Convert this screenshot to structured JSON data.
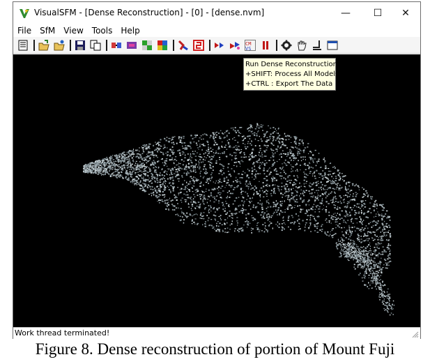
{
  "window": {
    "title": "VisualSFM - [Dense Reconstruction] - [0] - [dense.nvm]",
    "minimize_glyph": "—",
    "maximize_glyph": "☐",
    "close_glyph": "✕"
  },
  "menu": [
    "File",
    "SfM",
    "View",
    "Tools",
    "Help"
  ],
  "toolbar_icons": [
    "log-window-icon",
    "open-multi-images-icon",
    "open-nvm-icon",
    "save-icon",
    "copy-icon",
    "match-images-icon",
    "compute-matches-icon",
    "pairwise-matrix-icon",
    "feature-icon",
    "sfm-step-icon",
    "sfm-mode-icon",
    "compute-3d-icon",
    "incremental-sfm-icon",
    "dense-reconstruction-icon",
    "pause-icon",
    "settings-gear-icon",
    "hand-tool-icon",
    "show-features-icon",
    "display-window-icon"
  ],
  "tooltip": {
    "line1": "Run Dense Reconstruction",
    "line2": "+SHIFT: Process All Models",
    "line3": "+CTRL : Export The Data"
  },
  "status": "Work thread terminated!",
  "caption": "Figure 8. Dense reconstruction of portion of Mount Fuji",
  "colors": {
    "canvas_bg": "#000000",
    "points_main": "#9aa7ad",
    "points_light": "#c9d3d6",
    "tooltip_bg": "#ffffe1"
  }
}
